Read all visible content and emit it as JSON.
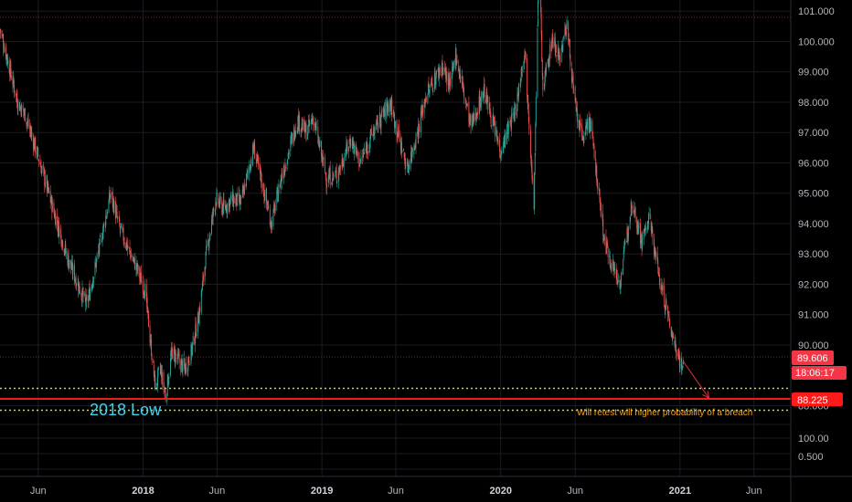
{
  "chart_data": {
    "type": "candlestick",
    "y_range": [
      88.15,
      101.2
    ],
    "x_range": [
      "2017-03-15",
      "2021-08-15"
    ],
    "y_ticks": [
      {
        "v": 101.0,
        "label": "101.000"
      },
      {
        "v": 100.0,
        "label": "100.000"
      },
      {
        "v": 99.0,
        "label": "99.000"
      },
      {
        "v": 98.0,
        "label": "98.000"
      },
      {
        "v": 97.0,
        "label": "97.000"
      },
      {
        "v": 96.0,
        "label": "96.000"
      },
      {
        "v": 95.0,
        "label": "95.000"
      },
      {
        "v": 94.0,
        "label": "94.000"
      },
      {
        "v": 93.0,
        "label": "93.000"
      },
      {
        "v": 92.0,
        "label": "92.000"
      },
      {
        "v": 91.0,
        "label": "91.000"
      },
      {
        "v": 90.0,
        "label": "90.000"
      },
      {
        "v": 88.0,
        "label": "88.000"
      }
    ],
    "extra_y_labels": [
      "100.00",
      "0.500"
    ],
    "x_ticks": [
      {
        "date": "2017-06-01",
        "label": "Jun",
        "major": false
      },
      {
        "date": "2018-01-01",
        "label": "2018",
        "major": true
      },
      {
        "date": "2018-06-01",
        "label": "Jun",
        "major": false
      },
      {
        "date": "2019-01-01",
        "label": "2019",
        "major": true
      },
      {
        "date": "2019-06-01",
        "label": "Jun",
        "major": false
      },
      {
        "date": "2020-01-01",
        "label": "2020",
        "major": true
      },
      {
        "date": "2020-06-01",
        "label": "Jun",
        "major": false
      },
      {
        "date": "2021-01-01",
        "label": "2021",
        "major": true
      },
      {
        "date": "2021-06-01",
        "label": "Jun",
        "major": false
      }
    ],
    "price_path": [
      [
        "2017-03-15",
        100.4
      ],
      [
        "2017-04-01",
        99.3
      ],
      [
        "2017-04-20",
        98.0
      ],
      [
        "2017-05-05",
        97.6
      ],
      [
        "2017-06-01",
        96.2
      ],
      [
        "2017-07-01",
        94.5
      ],
      [
        "2017-08-01",
        92.8
      ],
      [
        "2017-09-08",
        91.3
      ],
      [
        "2017-10-01",
        93.0
      ],
      [
        "2017-10-27",
        95.0
      ],
      [
        "2017-11-15",
        93.8
      ],
      [
        "2017-12-01",
        93.2
      ],
      [
        "2017-12-20",
        92.5
      ],
      [
        "2018-01-05",
        91.8
      ],
      [
        "2018-01-26",
        88.6
      ],
      [
        "2018-02-05",
        89.2
      ],
      [
        "2018-02-16",
        88.3
      ],
      [
        "2018-03-01",
        89.8
      ],
      [
        "2018-03-27",
        89.2
      ],
      [
        "2018-04-10",
        89.8
      ],
      [
        "2018-04-25",
        91.0
      ],
      [
        "2018-05-10",
        93.0
      ],
      [
        "2018-05-29",
        94.8
      ],
      [
        "2018-06-15",
        94.5
      ],
      [
        "2018-07-01",
        94.8
      ],
      [
        "2018-07-20",
        94.7
      ],
      [
        "2018-08-15",
        96.5
      ],
      [
        "2018-09-01",
        95.3
      ],
      [
        "2018-09-20",
        94.0
      ],
      [
        "2018-10-10",
        95.5
      ],
      [
        "2018-11-12",
        97.4
      ],
      [
        "2018-12-01",
        97.0
      ],
      [
        "2018-12-14",
        97.5
      ],
      [
        "2019-01-10",
        95.5
      ],
      [
        "2019-02-01",
        95.6
      ],
      [
        "2019-03-01",
        96.8
      ],
      [
        "2019-03-20",
        96.0
      ],
      [
        "2019-04-15",
        97.0
      ],
      [
        "2019-05-20",
        98.0
      ],
      [
        "2019-06-24",
        95.8
      ],
      [
        "2019-07-15",
        97.0
      ],
      [
        "2019-08-01",
        98.2
      ],
      [
        "2019-09-03",
        99.2
      ],
      [
        "2019-09-20",
        98.5
      ],
      [
        "2019-10-01",
        99.6
      ],
      [
        "2019-11-01",
        97.2
      ],
      [
        "2019-11-28",
        98.4
      ],
      [
        "2019-12-31",
        96.4
      ],
      [
        "2020-02-01",
        97.8
      ],
      [
        "2020-02-19",
        99.8
      ],
      [
        "2020-03-09",
        94.6
      ],
      [
        "2020-03-19",
        103.0
      ],
      [
        "2020-03-27",
        98.4
      ],
      [
        "2020-04-15",
        100.1
      ],
      [
        "2020-05-01",
        99.5
      ],
      [
        "2020-05-15",
        100.6
      ],
      [
        "2020-06-01",
        97.8
      ],
      [
        "2020-06-15",
        96.8
      ],
      [
        "2020-07-01",
        97.4
      ],
      [
        "2020-08-01",
        93.3
      ],
      [
        "2020-08-31",
        92.0
      ],
      [
        "2020-09-25",
        94.8
      ],
      [
        "2020-10-15",
        93.4
      ],
      [
        "2020-10-30",
        94.2
      ],
      [
        "2020-11-20",
        92.2
      ],
      [
        "2020-12-15",
        90.4
      ],
      [
        "2021-01-06",
        89.2
      ],
      [
        "2021-01-08",
        89.6
      ]
    ],
    "last_price": 89.606,
    "levels": [
      {
        "name": "resistance",
        "value": 100.8
      },
      {
        "name": "last-price",
        "value": 89.606
      },
      {
        "name": "upper-band",
        "value": 88.57
      },
      {
        "name": "support-2018-low",
        "value": 88.225
      },
      {
        "name": "lower-band",
        "value": 87.85
      }
    ],
    "projection": {
      "from": [
        "2021-01-08",
        89.45
      ],
      "to": [
        "2021-03-01",
        88.25
      ]
    },
    "annotations": {
      "low_label": "2018 Low",
      "breach_text": "Will retest will higher probability of a breach"
    },
    "badges": {
      "last_price": "89.606",
      "countdown": "18:06:17",
      "support": "88.225"
    }
  },
  "colors": {
    "background": "#000000",
    "grid": "#1a1c22",
    "up": "#26a69a",
    "down": "#ef5350",
    "support": "#e52020",
    "band": "#b7e34f",
    "badge": "#f23645",
    "label_cyan": "#3ed2f0",
    "note_orange": "#f5a623"
  }
}
